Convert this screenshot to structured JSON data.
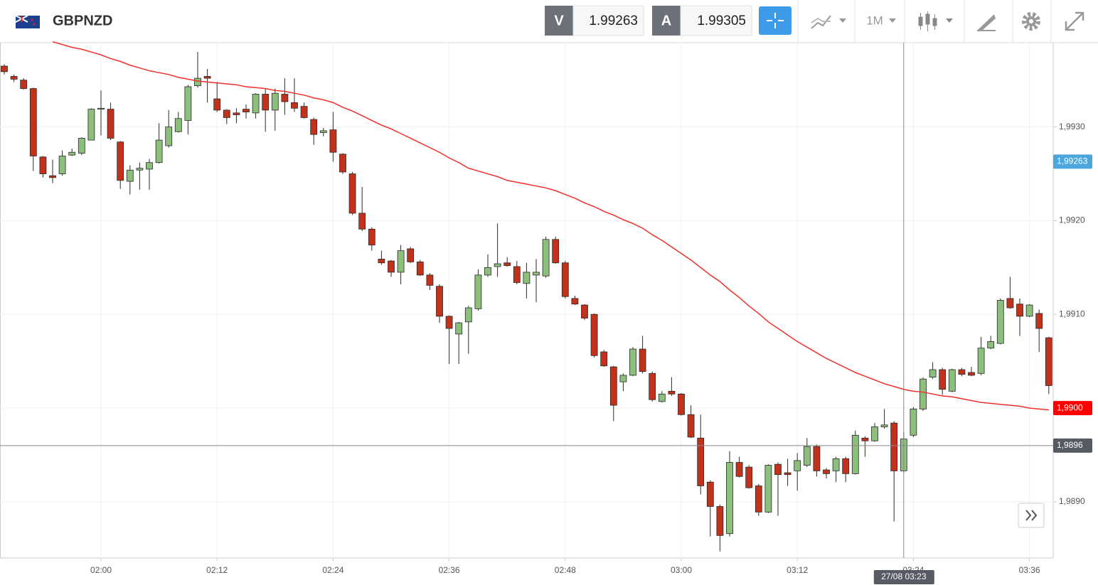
{
  "header": {
    "symbol": "GBPNZD",
    "bid_label": "V",
    "bid": "1.99263",
    "ask_label": "A",
    "ask": "1.99305",
    "timeframe": "1M"
  },
  "chart_data": {
    "type": "candlestick",
    "categories": [
      null,
      null,
      null,
      null,
      null,
      null,
      null,
      null,
      null,
      null,
      "02:00",
      null,
      null,
      null,
      null,
      null,
      null,
      null,
      null,
      null,
      null,
      null,
      "02:12",
      null,
      null,
      null,
      null,
      null,
      null,
      null,
      null,
      null,
      null,
      null,
      "02:24",
      null,
      null,
      null,
      null,
      null,
      null,
      null,
      null,
      null,
      null,
      null,
      "02:36",
      null,
      null,
      null,
      null,
      null,
      null,
      null,
      null,
      null,
      null,
      null,
      "02:48",
      null,
      null,
      null,
      null,
      null,
      null,
      null,
      null,
      null,
      null,
      null,
      "03:00",
      null,
      null,
      null,
      null,
      null,
      null,
      null,
      null,
      null,
      null,
      null,
      "03:12",
      null,
      null,
      null,
      null,
      null,
      null,
      null,
      null,
      null,
      null,
      null,
      "03:24",
      null,
      null,
      null,
      null,
      null,
      null,
      null,
      null,
      null,
      null,
      null,
      "03:36",
      null,
      null
    ],
    "open": [
      1.99365,
      1.99354,
      1.9935,
      1.99341,
      1.99268,
      1.99248,
      1.9925,
      1.9927,
      1.99272,
      1.99286,
      1.99319,
      1.99319,
      1.99284,
      1.99242,
      1.99254,
      1.99255,
      1.99262,
      1.9928,
      1.99295,
      1.99307,
      1.99344,
      1.99354,
      1.9933,
      1.99318,
      1.99315,
      1.99319,
      1.99315,
      1.99335,
      1.99318,
      1.99335,
      1.99326,
      1.99322,
      1.99308,
      1.99294,
      1.99297,
      1.99271,
      1.9925,
      1.99208,
      1.99191,
      1.99159,
      1.99157,
      1.99145,
      1.9917,
      1.99156,
      1.99142,
      1.9913,
      1.99098,
      1.99079,
      1.99092,
      1.99106,
      1.99142,
      1.99151,
      1.99155,
      1.99151,
      1.99133,
      1.99142,
      1.99141,
      1.9918,
      1.99155,
      1.99117,
      1.9911,
      1.991,
      1.9906,
      1.99044,
      1.99028,
      1.99035,
      1.99063,
      1.99037,
      1.99007,
      1.99018,
      1.99015,
      1.98993,
      1.98968,
      1.98921,
      1.98895,
      1.98866,
      1.98942,
      1.98937,
      1.98917,
      1.98889,
      1.9894,
      1.98931,
      1.98933,
      1.98939,
      1.98959,
      1.98934,
      1.98933,
      1.98946,
      1.9893,
      1.98968,
      1.98965,
      1.9898,
      1.98984,
      1.98933,
      1.98971,
      1.98999,
      1.99033,
      1.99041,
      1.99018,
      1.99041,
      1.99038,
      1.99037,
      1.99064,
      1.99069,
      1.99117,
      1.99111,
      1.99098,
      1.99101,
      1.99075
    ],
    "high": [
      1.99367,
      1.99356,
      1.99352,
      1.99342,
      1.99269,
      1.99265,
      1.99275,
      1.99277,
      1.99289,
      1.9932,
      1.99339,
      1.99326,
      1.99285,
      1.99259,
      1.99262,
      1.99266,
      1.99304,
      1.99318,
      1.99316,
      1.99345,
      1.9938,
      1.99362,
      1.99348,
      1.99319,
      1.9932,
      1.99324,
      1.99336,
      1.99341,
      1.99341,
      1.99352,
      1.99352,
      1.99326,
      1.9931,
      1.99299,
      1.99316,
      1.99272,
      1.99252,
      1.99236,
      1.99193,
      1.99168,
      1.99158,
      1.99174,
      1.99172,
      1.99158,
      1.99144,
      1.99132,
      1.99099,
      1.99092,
      1.99109,
      1.99148,
      1.99164,
      1.99197,
      1.99161,
      1.99157,
      1.99155,
      1.99159,
      1.99183,
      1.99183,
      1.99157,
      1.9912,
      1.99111,
      1.99101,
      1.99062,
      1.99045,
      1.99037,
      1.99065,
      1.99077,
      1.99039,
      1.99018,
      1.99033,
      1.99016,
      1.99003,
      1.98993,
      1.98923,
      1.98897,
      1.98954,
      1.98948,
      1.98939,
      1.98919,
      1.9894,
      1.98942,
      1.98946,
      1.98952,
      1.98968,
      1.98961,
      1.98936,
      1.98948,
      1.98948,
      1.98976,
      1.9897,
      1.98984,
      1.98999,
      1.98986,
      1.98974,
      1.99001,
      1.99033,
      1.99049,
      1.99043,
      1.99042,
      1.99043,
      1.99044,
      1.99076,
      1.99077,
      1.99117,
      1.9914,
      1.99117,
      1.99111,
      1.99105,
      1.99076
    ],
    "low": [
      1.99356,
      1.99348,
      1.9934,
      1.99253,
      1.99246,
      1.9924,
      1.99248,
      1.99269,
      1.9927,
      1.99286,
      1.99291,
      1.99286,
      1.99234,
      1.99228,
      1.99233,
      1.99233,
      1.99261,
      1.99278,
      1.99294,
      1.99292,
      1.99342,
      1.99326,
      1.99316,
      1.99303,
      1.99304,
      1.99309,
      1.99309,
      1.99295,
      1.99296,
      1.99313,
      1.99316,
      1.99309,
      1.99281,
      1.9929,
      1.99263,
      1.9925,
      1.99206,
      1.99189,
      1.99168,
      1.99153,
      1.9914,
      1.99132,
      1.99155,
      1.99141,
      1.99126,
      1.99091,
      1.99047,
      1.99047,
      1.99058,
      1.99104,
      1.9914,
      1.9914,
      1.99151,
      1.99132,
      1.99117,
      1.99113,
      1.99139,
      1.99154,
      1.99117,
      1.9911,
      1.99094,
      1.99054,
      1.99044,
      1.98986,
      1.99018,
      1.99034,
      1.99037,
      1.99007,
      1.99006,
      1.99013,
      1.98992,
      1.98968,
      1.98908,
      1.98863,
      1.98847,
      1.98863,
      1.98926,
      1.98914,
      1.98885,
      1.98888,
      1.98885,
      1.98917,
      1.98912,
      1.98937,
      1.98927,
      1.98925,
      1.98921,
      1.98921,
      1.98929,
      1.98948,
      1.98964,
      1.98978,
      1.98879,
      1.98931,
      1.98969,
      1.98997,
      1.99031,
      1.99014,
      1.99017,
      1.99034,
      1.99034,
      1.99035,
      1.99063,
      1.99068,
      1.99106,
      1.99077,
      1.99097,
      1.9906,
      1.99015
    ],
    "close": [
      1.99359,
      1.99351,
      1.99341,
      1.99269,
      1.9925,
      1.99246,
      1.99269,
      1.99273,
      1.99288,
      1.99319,
      1.9932,
      1.99288,
      1.99243,
      1.99254,
      1.99256,
      1.99262,
      1.99286,
      1.993,
      1.99309,
      1.99343,
      1.99352,
      1.99352,
      1.99318,
      1.9931,
      1.99313,
      1.99316,
      1.99335,
      1.99318,
      1.99336,
      1.99327,
      1.9932,
      1.9931,
      1.99292,
      1.99296,
      1.99273,
      1.99252,
      1.99208,
      1.99191,
      1.99174,
      1.99155,
      1.99145,
      1.99168,
      1.99156,
      1.99142,
      1.99131,
      1.99098,
      1.99085,
      1.99091,
      1.99107,
      1.99142,
      1.9915,
      1.99154,
      1.99152,
      1.99134,
      1.99145,
      1.99145,
      1.9918,
      1.99155,
      1.99119,
      1.99111,
      1.99096,
      1.99056,
      1.99045,
      1.99003,
      1.99035,
      1.99063,
      1.99039,
      1.99009,
      1.99015,
      1.99015,
      1.98993,
      1.98969,
      1.98917,
      1.98895,
      1.98864,
      1.98942,
      1.98927,
      1.98915,
      1.98889,
      1.98939,
      1.98929,
      1.98929,
      1.98944,
      1.98959,
      1.98933,
      1.9893,
      1.98946,
      1.9893,
      1.98971,
      1.98965,
      1.9898,
      1.98982,
      1.98933,
      1.98967,
      1.98999,
      1.99031,
      1.99041,
      1.9902,
      1.99041,
      1.99036,
      1.99035,
      1.99064,
      1.99071,
      1.99115,
      1.99107,
      1.99098,
      1.9911,
      1.99085,
      1.99024
    ],
    "up_color": "#8dbf7c",
    "down_color": "#c2321b",
    "overlay": {
      "color": "#f0302a",
      "values": [
        null,
        null,
        null,
        null,
        null,
        1.99391,
        1.99388,
        1.99385,
        1.99383,
        1.9938,
        1.99377,
        1.99373,
        1.9937,
        1.99366,
        1.99363,
        1.9936,
        1.99358,
        1.99356,
        1.99353,
        1.99351,
        1.99349,
        1.99348,
        1.99347,
        1.99346,
        1.99345,
        1.99343,
        1.99342,
        1.99341,
        1.99339,
        1.99338,
        1.99336,
        1.99334,
        1.99331,
        1.99329,
        1.99326,
        1.99321,
        1.99317,
        1.99312,
        1.99307,
        1.99302,
        1.99298,
        1.99293,
        1.99288,
        1.99283,
        1.99278,
        1.99273,
        1.99267,
        1.99262,
        1.99256,
        1.99253,
        1.9925,
        1.99247,
        1.99243,
        1.99241,
        1.99239,
        1.99237,
        1.99235,
        1.99232,
        1.99228,
        1.99224,
        1.99219,
        1.99215,
        1.9921,
        1.99206,
        1.99201,
        1.99197,
        1.99192,
        1.99185,
        1.99179,
        1.99172,
        1.99165,
        1.99158,
        1.9915,
        1.99142,
        1.99135,
        1.99126,
        1.99118,
        1.99109,
        1.99101,
        1.99092,
        1.99085,
        1.99078,
        1.99071,
        1.99065,
        1.99059,
        1.99053,
        1.99048,
        1.99043,
        1.99038,
        1.99034,
        1.9903,
        1.99026,
        1.99023,
        1.9902,
        1.99018,
        1.99017,
        1.99015,
        1.99013,
        1.99012,
        1.9901,
        1.99008,
        1.99006,
        1.99005,
        1.99004,
        1.99003,
        1.99002,
        1.99,
        1.98999,
        1.98998
      ]
    },
    "ylim": [
      1.9884,
      1.9939
    ],
    "yticks": [
      {
        "value": 1.989,
        "label": "1,9890"
      },
      {
        "value": 1.99,
        "label": "1,9900"
      },
      {
        "value": 1.991,
        "label": "1,9910"
      },
      {
        "value": 1.992,
        "label": "1,9920"
      },
      {
        "value": 1.993,
        "label": "1,9930"
      }
    ],
    "grid": true,
    "price_labels": [
      {
        "value": 1.99263,
        "label": "1,99263",
        "color": "#4aa6dc"
      },
      {
        "value": 1.99,
        "label": "1,9900",
        "color": "#ff0000"
      }
    ],
    "crosshair": {
      "index": 93,
      "label": "27/08 03:23",
      "y": 1.9896,
      "y_label": "1,9896",
      "color": "#555a63"
    }
  }
}
